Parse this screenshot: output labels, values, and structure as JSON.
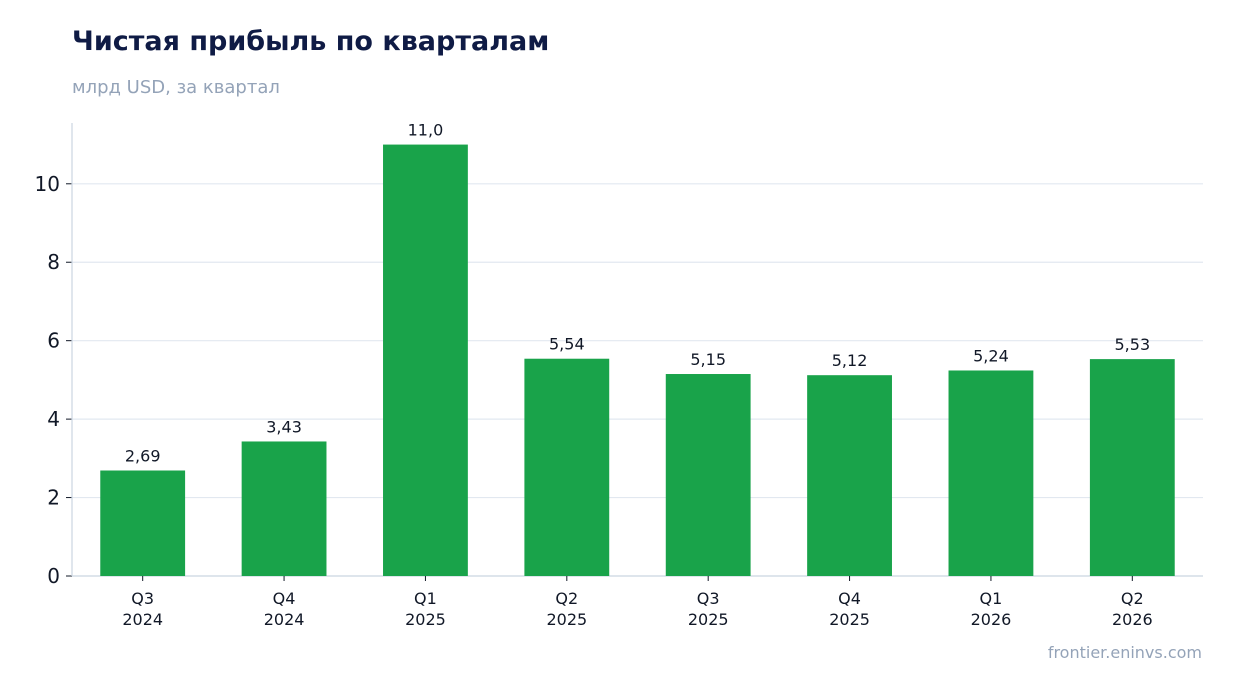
{
  "header": {
    "title": "Чистая прибыль по кварталам",
    "subtitle": "млрд USD, за квартал"
  },
  "footer": {
    "source": "frontier.eninvs.com"
  },
  "colors": {
    "bar": "#19a34a",
    "grid": "#e2e8f0",
    "axis": "#cbd5e1",
    "text": "#111827"
  },
  "chart_data": {
    "type": "bar",
    "categories": [
      [
        "Q3",
        "2024"
      ],
      [
        "Q4",
        "2024"
      ],
      [
        "Q1",
        "2025"
      ],
      [
        "Q2",
        "2025"
      ],
      [
        "Q3",
        "2025"
      ],
      [
        "Q4",
        "2025"
      ],
      [
        "Q1",
        "2026"
      ],
      [
        "Q2",
        "2026"
      ]
    ],
    "values": [
      2.69,
      3.43,
      11.0,
      5.54,
      5.15,
      5.12,
      5.24,
      5.53
    ],
    "value_labels": [
      "2,69",
      "3,43",
      "11,0",
      "5,54",
      "5,15",
      "5,12",
      "5,24",
      "5,53"
    ],
    "title": "Чистая прибыль по кварталам",
    "subtitle": "млрд USD, за квартал",
    "xlabel": "",
    "ylabel": "",
    "ylim": [
      0,
      11.55
    ],
    "yticks": [
      0,
      2,
      4,
      6,
      8,
      10
    ],
    "grid": true,
    "legend": "none"
  }
}
